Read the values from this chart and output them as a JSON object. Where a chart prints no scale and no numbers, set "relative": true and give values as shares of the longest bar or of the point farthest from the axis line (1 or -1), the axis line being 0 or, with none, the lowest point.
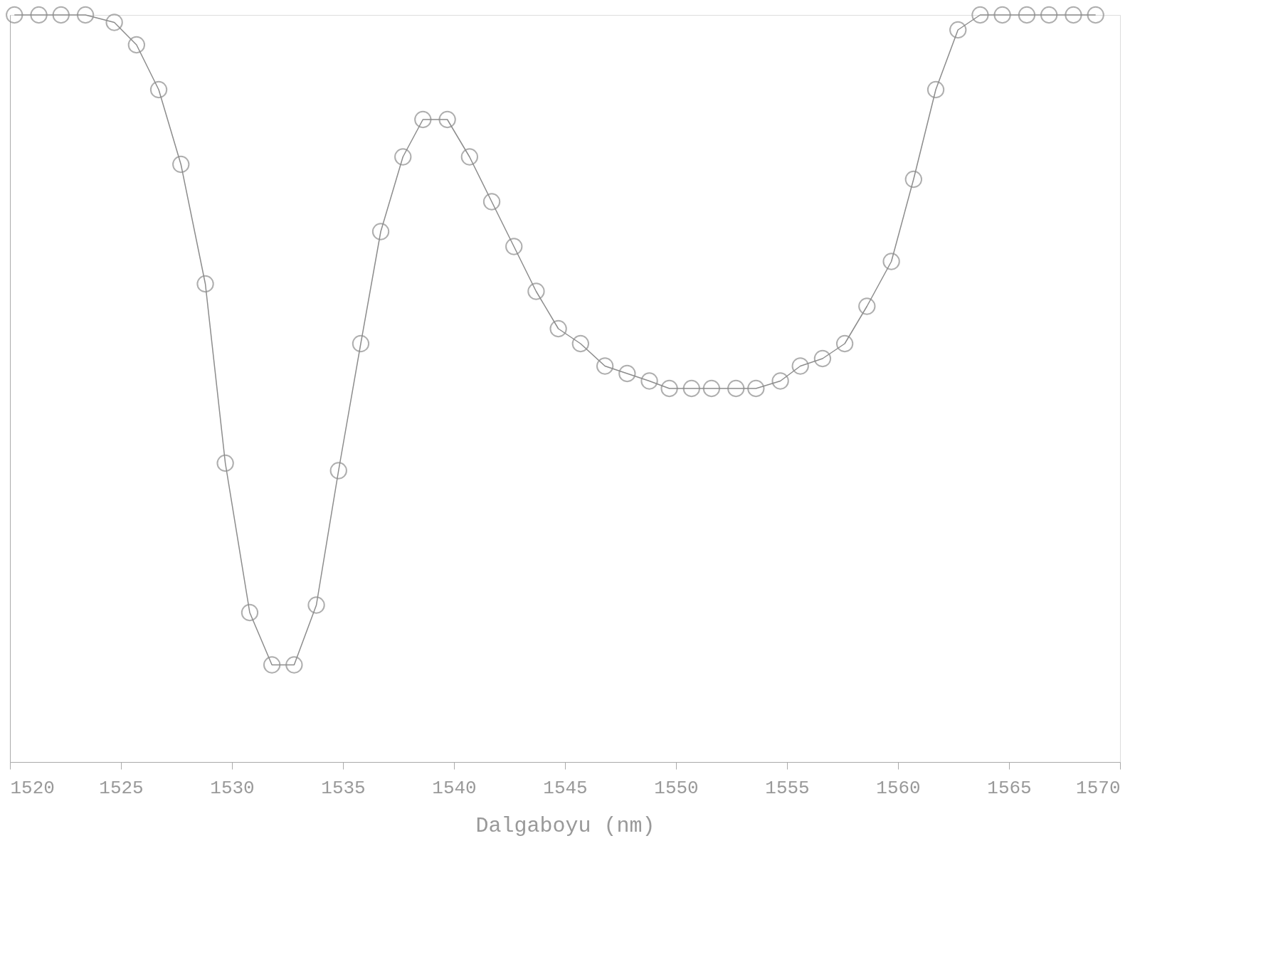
{
  "chart_data": {
    "type": "line",
    "xlabel": "Dalgaboyu (nm)",
    "relative": true,
    "marker": "circle",
    "line_style": "solid",
    "grid": false,
    "xlim": [
      1520,
      1570
    ],
    "xticks": [
      1520,
      1525,
      1530,
      1535,
      1540,
      1545,
      1550,
      1555,
      1560,
      1565,
      1570
    ],
    "series": [
      {
        "color": "#8c8c8c",
        "x": [
          1520.2,
          1521.3,
          1522.3,
          1523.4,
          1524.7,
          1525.7,
          1526.7,
          1527.7,
          1528.8,
          1529.7,
          1530.8,
          1531.8,
          1532.8,
          1533.8,
          1534.8,
          1535.8,
          1536.7,
          1537.7,
          1538.6,
          1539.7,
          1540.7,
          1541.7,
          1542.7,
          1543.7,
          1544.7,
          1545.7,
          1546.8,
          1547.8,
          1548.8,
          1549.7,
          1550.7,
          1551.6,
          1552.7,
          1553.6,
          1554.7,
          1555.6,
          1556.6,
          1557.6,
          1558.6,
          1559.7,
          1560.7,
          1561.7,
          1562.7,
          1563.7,
          1564.7,
          1565.8,
          1566.8,
          1567.9,
          1568.9
        ],
        "values": [
          1.0,
          1.0,
          1.0,
          1.0,
          0.99,
          0.96,
          0.9,
          0.8,
          0.64,
          0.4,
          0.2,
          0.13,
          0.13,
          0.21,
          0.39,
          0.56,
          0.71,
          0.81,
          0.86,
          0.86,
          0.81,
          0.75,
          0.69,
          0.63,
          0.58,
          0.56,
          0.53,
          0.52,
          0.51,
          0.5,
          0.5,
          0.5,
          0.5,
          0.5,
          0.51,
          0.53,
          0.54,
          0.56,
          0.61,
          0.67,
          0.78,
          0.9,
          0.98,
          1.0,
          1.0,
          1.0,
          1.0,
          1.0,
          1.0
        ]
      }
    ]
  }
}
